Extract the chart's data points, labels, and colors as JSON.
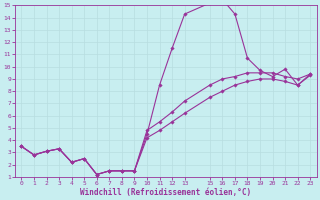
{
  "xlabel": "Windchill (Refroidissement éolien,°C)",
  "bg_color": "#c8eef0",
  "grid_color": "#b8dde0",
  "line_color": "#993399",
  "xlim": [
    -0.5,
    23.5
  ],
  "ylim": [
    1,
    15
  ],
  "xticks": [
    0,
    1,
    2,
    3,
    4,
    5,
    6,
    7,
    8,
    9,
    10,
    11,
    12,
    13,
    15,
    16,
    17,
    18,
    19,
    20,
    21,
    22,
    23
  ],
  "yticks": [
    1,
    2,
    3,
    4,
    5,
    6,
    7,
    8,
    9,
    10,
    11,
    12,
    13,
    14,
    15
  ],
  "series1_x": [
    0,
    1,
    2,
    3,
    4,
    5,
    6,
    7,
    8,
    9,
    10,
    11,
    12,
    13,
    15,
    16,
    17,
    18,
    19,
    20,
    21,
    22,
    23
  ],
  "series1_y": [
    3.5,
    2.8,
    3.1,
    3.3,
    2.2,
    2.5,
    1.2,
    1.5,
    1.5,
    1.5,
    4.5,
    8.5,
    11.5,
    14.3,
    15.2,
    15.5,
    14.3,
    10.7,
    9.7,
    9.2,
    9.8,
    8.5,
    9.3
  ],
  "series2_x": [
    0,
    1,
    2,
    3,
    4,
    5,
    6,
    7,
    8,
    9,
    10,
    11,
    12,
    13,
    15,
    16,
    17,
    18,
    19,
    20,
    21,
    22,
    23
  ],
  "series2_y": [
    3.5,
    2.8,
    3.1,
    3.3,
    2.2,
    2.5,
    1.2,
    1.5,
    1.5,
    1.5,
    4.8,
    5.5,
    6.3,
    7.2,
    8.5,
    9.0,
    9.2,
    9.5,
    9.5,
    9.5,
    9.2,
    9.0,
    9.4
  ],
  "series3_x": [
    0,
    1,
    2,
    3,
    4,
    5,
    6,
    7,
    8,
    9,
    10,
    11,
    12,
    13,
    15,
    16,
    17,
    18,
    19,
    20,
    21,
    22,
    23
  ],
  "series3_y": [
    3.5,
    2.8,
    3.1,
    3.3,
    2.2,
    2.5,
    1.2,
    1.5,
    1.5,
    1.5,
    4.2,
    4.8,
    5.5,
    6.2,
    7.5,
    8.0,
    8.5,
    8.8,
    9.0,
    9.0,
    8.8,
    8.5,
    9.4
  ]
}
